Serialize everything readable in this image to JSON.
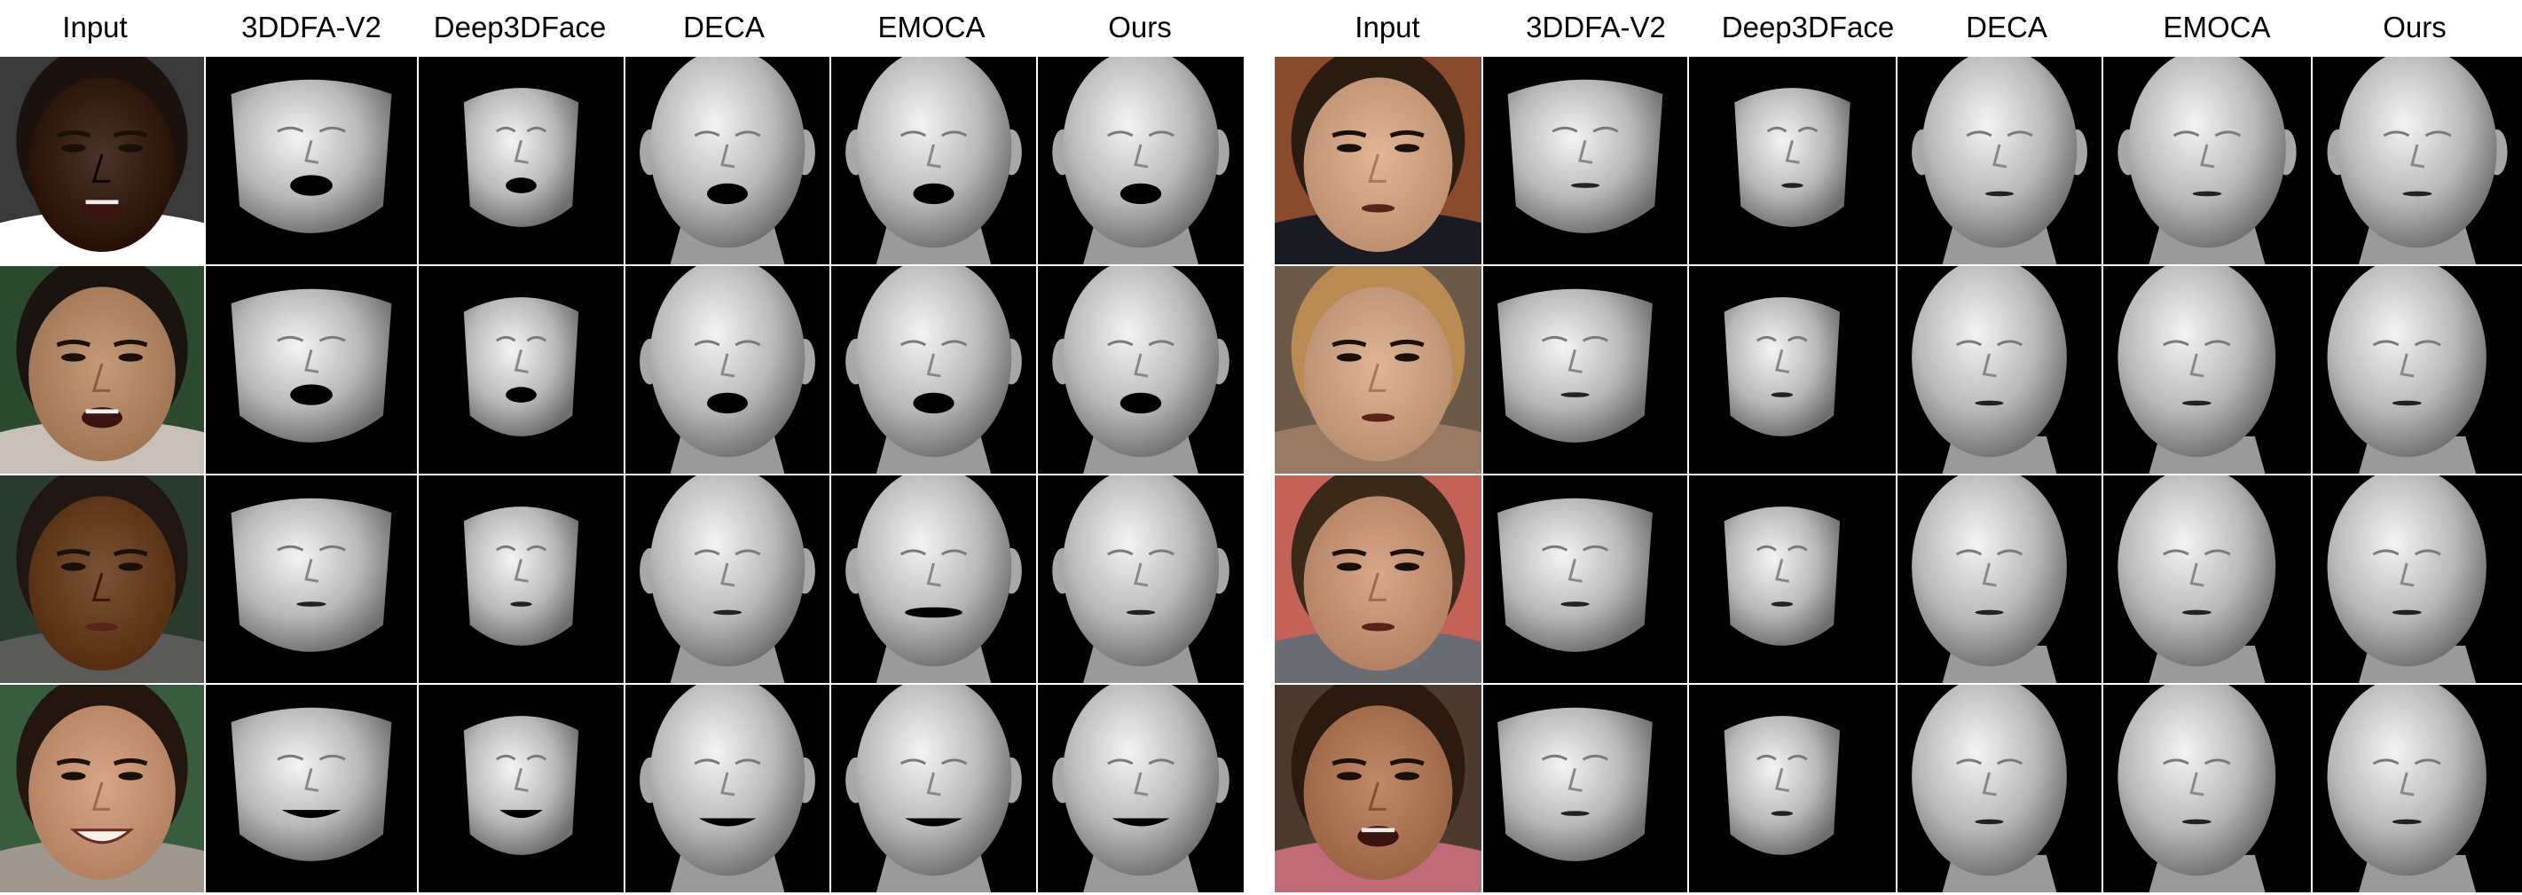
{
  "panels": [
    {
      "id": "left",
      "headers": [
        "Input",
        "3DDFA-V2",
        "Deep3DFace",
        "DECA",
        "EMOCA",
        "Ours"
      ],
      "rows": [
        {
          "skin": "#4a3328",
          "hair": "#1c120d",
          "bg": "#3a3a3a",
          "shirt": "#ffffff",
          "mouth": "open",
          "renders": [
            "frontal-open",
            "small-open",
            "head-open",
            "head-grimace",
            "head-open"
          ]
        },
        {
          "skin": "#c49a78",
          "hair": "#1a1410",
          "bg": "#2c4a30",
          "shirt": "#c8c0b8",
          "mouth": "open",
          "renders": [
            "frontal-open",
            "small-open",
            "head-open",
            "head-open",
            "head-open"
          ]
        },
        {
          "skin": "#7a5236",
          "hair": "#201611",
          "bg": "#2a3a2c",
          "shirt": "#5a5a58",
          "mouth": "ajar",
          "renders": [
            "frontal-ajar",
            "small-ajar",
            "head-ajar",
            "head-wide",
            "head-ajar"
          ]
        },
        {
          "skin": "#d8a686",
          "hair": "#22160f",
          "bg": "#375c3e",
          "shirt": "#a09890",
          "mouth": "smile",
          "renders": [
            "frontal-smile",
            "small-smile",
            "head-smile",
            "head-smile",
            "head-smile"
          ]
        }
      ]
    },
    {
      "id": "right",
      "headers": [
        "Input",
        "3DDFA-V2",
        "Deep3DFace",
        "DECA",
        "EMOCA",
        "Ours"
      ],
      "rows": [
        {
          "skin": "#e2b596",
          "hair": "#2a1c12",
          "bg": "#8a4a2c",
          "shirt": "#1a1a22",
          "mouth": "talk",
          "renders": [
            "frontal-talk",
            "small-talk",
            "head-talk",
            "head-talk",
            "head-talk"
          ]
        },
        {
          "skin": "#deb596",
          "hair": "#b98a52",
          "bg": "#6b5a4a",
          "shirt": "#9a7a62",
          "mouth": "talk",
          "renders": [
            "side-talk",
            "side-small",
            "side-head",
            "side-head",
            "side-head"
          ]
        },
        {
          "skin": "#d8a688",
          "hair": "#3a2818",
          "bg": "#c4625a",
          "shirt": "#6a6c74",
          "mouth": "talk",
          "renders": [
            "side-talk",
            "side-small",
            "side-head",
            "side-head",
            "side-head"
          ]
        },
        {
          "skin": "#c08a6a",
          "hair": "#2a1a10",
          "bg": "#4a3a30",
          "shirt": "#c06a7a",
          "mouth": "open",
          "renders": [
            "side-talk",
            "side-small",
            "side-head",
            "side-head",
            "side-head"
          ]
        }
      ]
    }
  ]
}
